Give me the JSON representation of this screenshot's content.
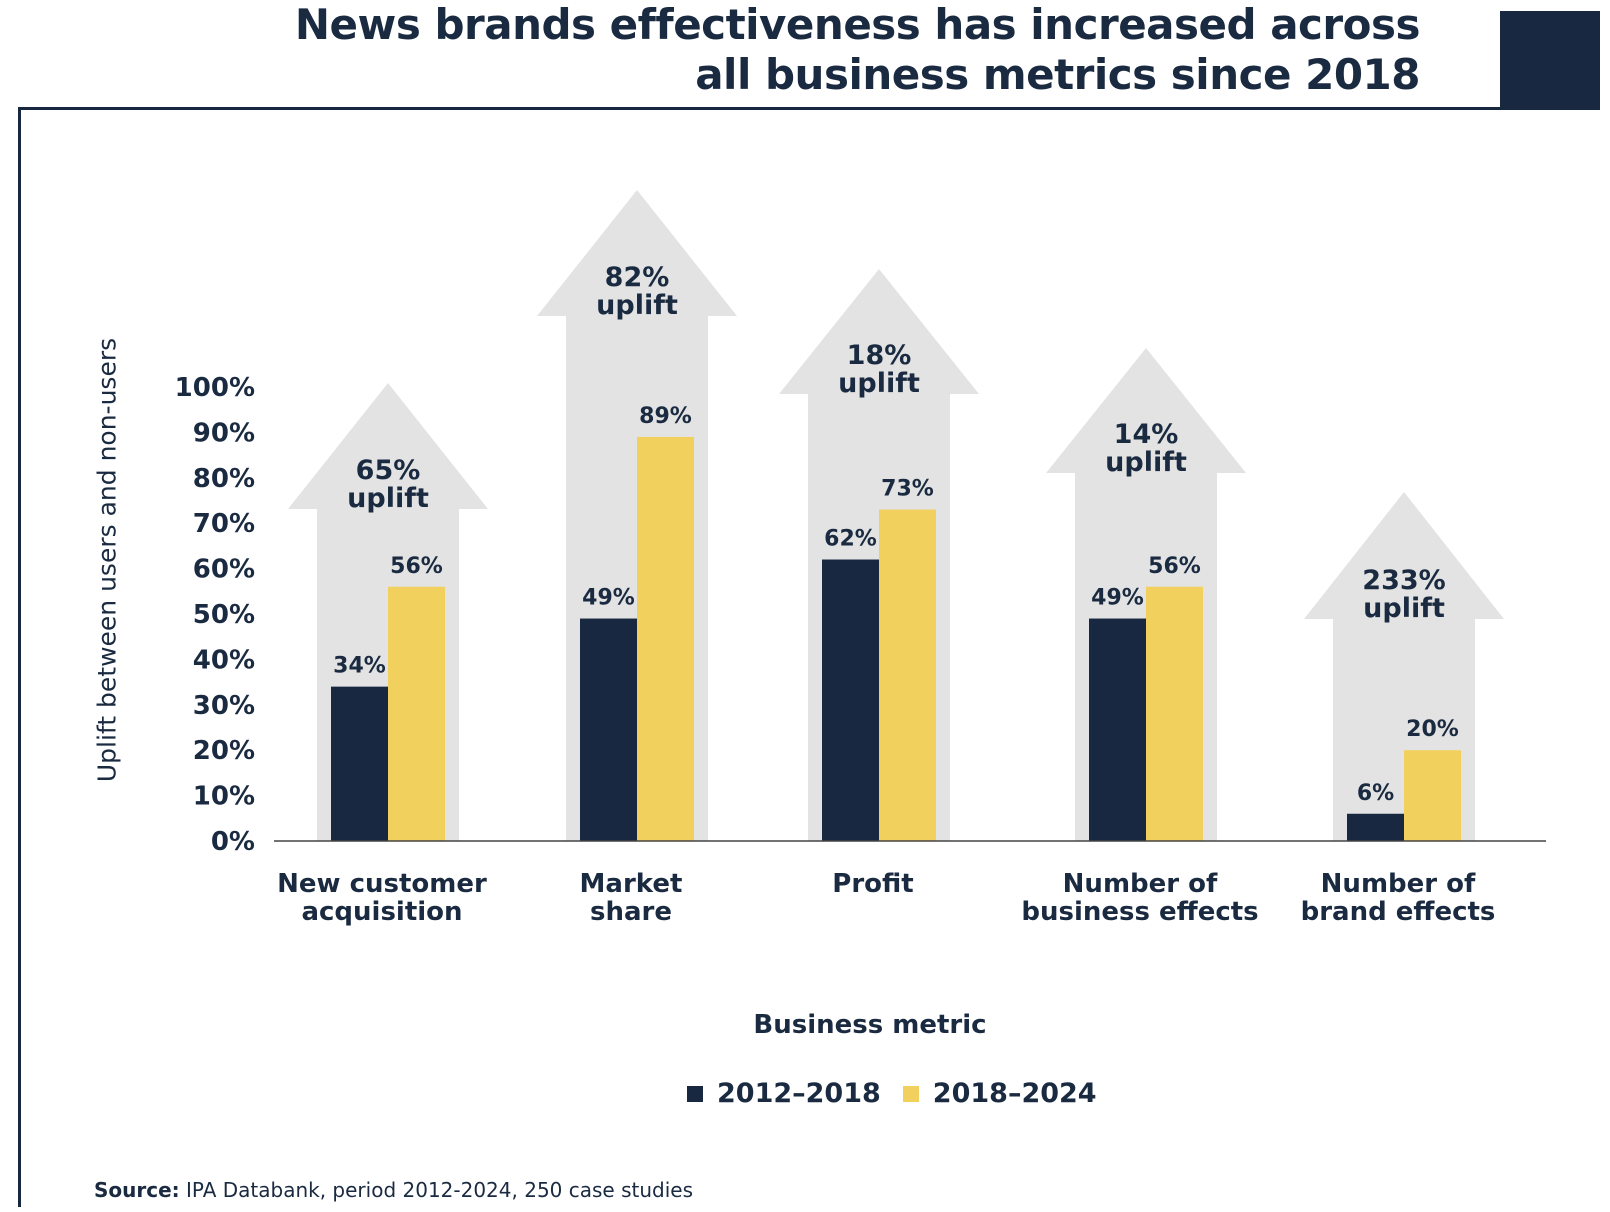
{
  "title_lines": [
    "News brands effectiveness has increased across",
    "all business  metrics since 2018"
  ],
  "source": {
    "label": "Source:",
    "text": " IPA Databank, period 2012-2024, 250 case studies"
  },
  "colors": {
    "navy": "#172840",
    "yellow": "#f2d05e",
    "arrow": "#e3e3e3",
    "axis": "#444444"
  },
  "chart_data": {
    "type": "bar",
    "xlabel": "Business metric",
    "ylabel": "Uplift between users and non-users",
    "ylim": [
      0,
      100
    ],
    "yticks": [
      "0%",
      "10%",
      "20%",
      "30%",
      "40%",
      "50%",
      "60%",
      "70%",
      "80%",
      "90%",
      "100%"
    ],
    "categories": [
      [
        "New customer",
        "acquisition"
      ],
      [
        "Market",
        "share"
      ],
      [
        "Profit"
      ],
      [
        "Number of",
        "business effects"
      ],
      [
        "Number of",
        "brand effects"
      ]
    ],
    "series": [
      {
        "name": "2012–2018",
        "values": [
          34,
          49,
          62,
          49,
          6
        ],
        "labels": [
          "34%",
          "49%",
          "62%",
          "49%",
          "6%"
        ],
        "color": "#172840"
      },
      {
        "name": "2018–2024",
        "values": [
          56,
          89,
          73,
          56,
          20
        ],
        "labels": [
          "56%",
          "89%",
          "73%",
          "56%",
          "20%"
        ],
        "color": "#f2d05e"
      }
    ],
    "annotations": [
      [
        "65%",
        "uplift"
      ],
      [
        "82%",
        "uplift"
      ],
      [
        "18%",
        "uplift"
      ],
      [
        "14%",
        "uplift"
      ],
      [
        "233%",
        "uplift"
      ]
    ],
    "grid": false,
    "legend_position": "bottom-center"
  }
}
